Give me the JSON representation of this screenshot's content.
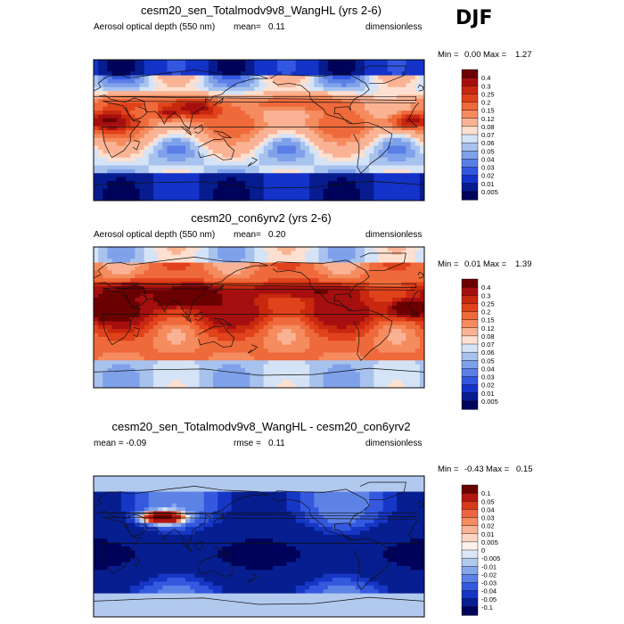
{
  "season": "DJF",
  "panels": [
    {
      "title": "cesm20_sen_Totalmodv9v8_WangHL (yrs 2-6)",
      "left_label": "Aerosol optical depth (550 nm)",
      "mean_label": "mean=",
      "mean_value": "0.11",
      "units": "dimensionless",
      "min_label": "Min =",
      "min_value": "0.00",
      "max_label": "Max =",
      "max_value": "1.27"
    },
    {
      "title": "cesm20_con6yrv2 (yrs 2-6)",
      "left_label": "Aerosol optical depth (550 nm)",
      "mean_label": "mean=",
      "mean_value": "0.20",
      "units": "dimensionless",
      "min_label": "Min =",
      "min_value": "0.01",
      "max_label": "Max =",
      "max_value": "1.39"
    },
    {
      "title": "cesm20_sen_Totalmodv9v8_WangHL - cesm20_con6yrv2",
      "left_label": "mean = -0.09",
      "mean_label": "rmse =",
      "mean_value": "0.11",
      "units": "dimensionless",
      "min_label": "Min =",
      "min_value": "-0.43",
      "max_label": "Max =",
      "max_value": "0.15"
    }
  ],
  "chart_data": [
    {
      "type": "heatmap",
      "title": "cesm20_sen_Totalmodv9v8_WangHL (yrs 2-6)",
      "variable": "Aerosol optical depth (550 nm)",
      "units": "dimensionless",
      "mean": 0.11,
      "min": 0.0,
      "max": 1.27,
      "colorbar_levels": [
        "0.4",
        "0.3",
        "0.25",
        "0.2",
        "0.15",
        "0.12",
        "0.08",
        "0.07",
        "0.06",
        "0.05",
        "0.04",
        "0.03",
        "0.02",
        "0.01",
        "0.005"
      ],
      "colors": [
        "#6a0000",
        "#a50f0f",
        "#c8280f",
        "#e0421b",
        "#ef6a3a",
        "#f58c5f",
        "#f9b394",
        "#fde0d0",
        "#d5e3f7",
        "#a8c2ee",
        "#7fa1ea",
        "#5a7ee6",
        "#3257e0",
        "#1433c8",
        "#061c8f",
        "#00035a"
      ],
      "scale": "low"
    },
    {
      "type": "heatmap",
      "title": "cesm20_con6yrv2 (yrs 2-6)",
      "variable": "Aerosol optical depth (550 nm)",
      "units": "dimensionless",
      "mean": 0.2,
      "min": 0.01,
      "max": 1.39,
      "colorbar_levels": [
        "0.4",
        "0.3",
        "0.25",
        "0.2",
        "0.15",
        "0.12",
        "0.08",
        "0.07",
        "0.06",
        "0.05",
        "0.04",
        "0.03",
        "0.02",
        "0.01",
        "0.005"
      ],
      "colors": [
        "#6a0000",
        "#a50f0f",
        "#c8280f",
        "#e0421b",
        "#ef6a3a",
        "#f58c5f",
        "#f9b394",
        "#fde0d0",
        "#d5e3f7",
        "#a8c2ee",
        "#7fa1ea",
        "#5a7ee6",
        "#3257e0",
        "#1433c8",
        "#061c8f",
        "#00035a"
      ],
      "scale": "high"
    },
    {
      "type": "heatmap",
      "title": "cesm20_sen_Totalmodv9v8_WangHL - cesm20_con6yrv2",
      "units": "dimensionless",
      "mean": -0.09,
      "rmse": 0.11,
      "min": -0.43,
      "max": 0.15,
      "colorbar_levels": [
        "0.1",
        "0.05",
        "0.04",
        "0.03",
        "0.02",
        "0.01",
        "0.005",
        "0",
        "-0.005",
        "-0.01",
        "-0.02",
        "-0.03",
        "-0.04",
        "-0.05",
        "-0.1"
      ],
      "colors": [
        "#6a0000",
        "#b3170f",
        "#d63a1b",
        "#ec6540",
        "#f58c5f",
        "#f9b394",
        "#fcd6c3",
        "#fff1ea",
        "#dbe7f7",
        "#b2c9ee",
        "#86a6ea",
        "#5d82e6",
        "#3459df",
        "#1637c6",
        "#071e90",
        "#00035a"
      ],
      "scale": "diff"
    }
  ]
}
